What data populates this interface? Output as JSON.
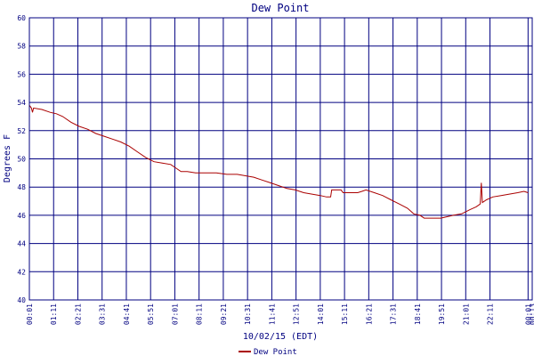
{
  "chart_data": {
    "type": "line",
    "title": "Dew Point",
    "xlabel": "10/02/15 (EDT)",
    "ylabel": "Degrees F",
    "ylim": [
      40,
      60
    ],
    "y_ticks": [
      "40",
      "42",
      "44",
      "46",
      "48",
      "50",
      "52",
      "54",
      "56",
      "58",
      "60"
    ],
    "x_ticks": [
      "00:01",
      "01:11",
      "02:21",
      "03:31",
      "04:41",
      "05:51",
      "07:01",
      "08:11",
      "09:21",
      "10:31",
      "11:41",
      "12:51",
      "14:01",
      "15:11",
      "16:21",
      "17:31",
      "18:41",
      "19:51",
      "21:01",
      "22:11",
      "00:01",
      "00:13"
    ],
    "x_range_hours": [
      0,
      24.2
    ],
    "grid": true,
    "legend_position": "bottom",
    "colors": {
      "series": "#aa0000",
      "grid": "#000080",
      "text": "#000080"
    },
    "series": [
      {
        "name": "Dew Point",
        "points": [
          [
            0.0,
            53.8
          ],
          [
            0.1,
            53.6
          ],
          [
            0.15,
            53.3
          ],
          [
            0.2,
            53.6
          ],
          [
            0.6,
            53.5
          ],
          [
            1.0,
            53.3
          ],
          [
            1.3,
            53.2
          ],
          [
            1.6,
            53.0
          ],
          [
            2.0,
            52.6
          ],
          [
            2.4,
            52.3
          ],
          [
            2.8,
            52.1
          ],
          [
            3.2,
            51.8
          ],
          [
            3.6,
            51.6
          ],
          [
            4.0,
            51.4
          ],
          [
            4.4,
            51.2
          ],
          [
            4.8,
            50.9
          ],
          [
            5.2,
            50.5
          ],
          [
            5.6,
            50.1
          ],
          [
            6.0,
            49.8
          ],
          [
            6.4,
            49.7
          ],
          [
            6.8,
            49.6
          ],
          [
            7.0,
            49.4
          ],
          [
            7.3,
            49.1
          ],
          [
            7.6,
            49.1
          ],
          [
            8.0,
            49.0
          ],
          [
            8.6,
            49.0
          ],
          [
            9.0,
            49.0
          ],
          [
            9.5,
            48.9
          ],
          [
            10.0,
            48.9
          ],
          [
            10.4,
            48.8
          ],
          [
            10.8,
            48.7
          ],
          [
            11.2,
            48.5
          ],
          [
            11.6,
            48.3
          ],
          [
            12.0,
            48.1
          ],
          [
            12.4,
            47.9
          ],
          [
            12.8,
            47.8
          ],
          [
            13.2,
            47.6
          ],
          [
            13.6,
            47.5
          ],
          [
            14.0,
            47.4
          ],
          [
            14.3,
            47.3
          ],
          [
            14.5,
            47.3
          ],
          [
            14.55,
            47.8
          ],
          [
            15.0,
            47.8
          ],
          [
            15.1,
            47.6
          ],
          [
            15.5,
            47.6
          ],
          [
            15.8,
            47.6
          ],
          [
            16.0,
            47.7
          ],
          [
            16.2,
            47.8
          ],
          [
            16.6,
            47.6
          ],
          [
            17.0,
            47.4
          ],
          [
            17.4,
            47.1
          ],
          [
            17.8,
            46.8
          ],
          [
            18.2,
            46.5
          ],
          [
            18.5,
            46.1
          ],
          [
            18.8,
            46.0
          ],
          [
            19.0,
            45.8
          ],
          [
            19.4,
            45.8
          ],
          [
            19.8,
            45.8
          ],
          [
            20.1,
            45.9
          ],
          [
            20.4,
            46.0
          ],
          [
            20.8,
            46.1
          ],
          [
            21.2,
            46.4
          ],
          [
            21.5,
            46.6
          ],
          [
            21.7,
            46.8
          ],
          [
            21.75,
            48.3
          ],
          [
            21.8,
            46.9
          ],
          [
            22.0,
            47.1
          ],
          [
            22.3,
            47.3
          ],
          [
            22.7,
            47.4
          ],
          [
            23.1,
            47.5
          ],
          [
            23.5,
            47.6
          ],
          [
            23.8,
            47.7
          ],
          [
            24.0,
            47.6
          ]
        ]
      }
    ]
  }
}
